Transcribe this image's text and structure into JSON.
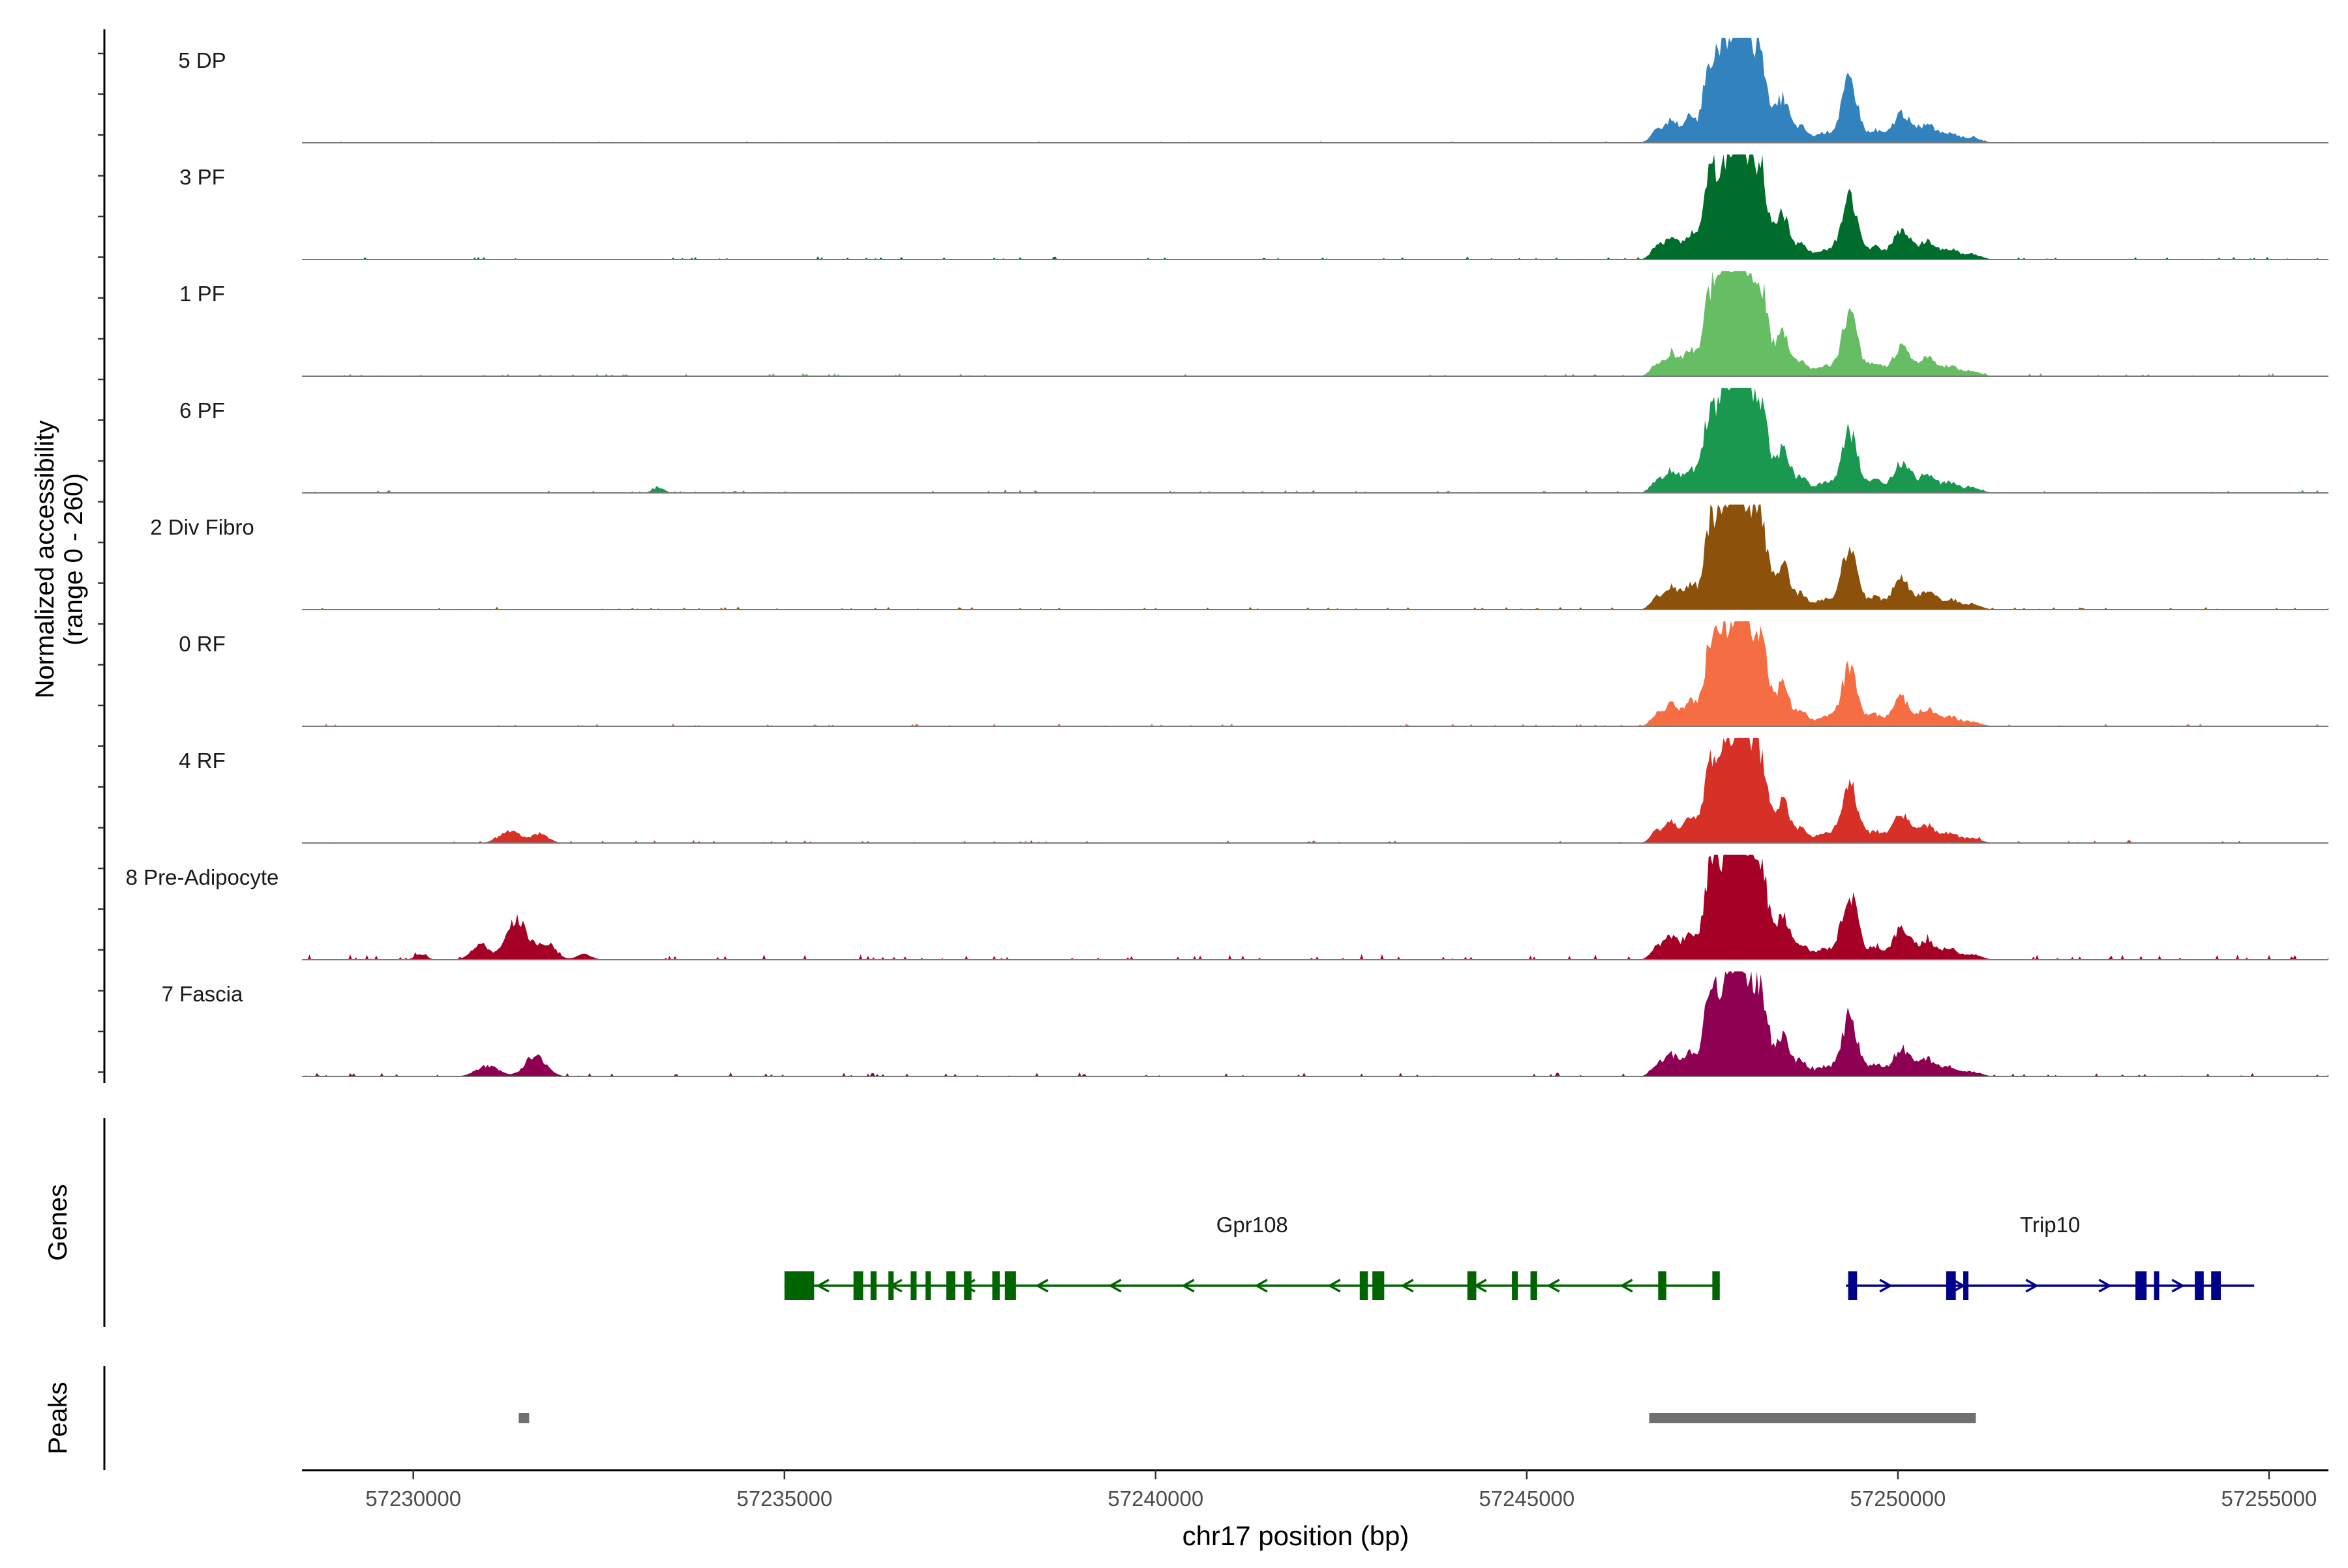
{
  "chart_data": {
    "type": "area",
    "title": "",
    "xlabel": "chr17 position (bp)",
    "ylabel": "Normalized accessibility",
    "ylabel_sub": "(range 0 - 260)",
    "xlim": [
      57228500,
      57255800
    ],
    "ylim": [
      0,
      260
    ],
    "x_ticks": [
      57230000,
      57235000,
      57240000,
      57245000,
      57250000,
      57255000
    ],
    "x_tick_labels": [
      "57230000",
      "57235000",
      "57240000",
      "57245000",
      "57250000",
      "57255000"
    ],
    "track_labels": {
      "genes": "Genes",
      "peaks": "Peaks"
    },
    "profile_peaks": [
      {
        "pos": 57246750,
        "h": 0.12,
        "w": 80
      },
      {
        "pos": 57246950,
        "h": 0.22,
        "w": 90
      },
      {
        "pos": 57247200,
        "h": 0.25,
        "w": 90
      },
      {
        "pos": 57247450,
        "h": 0.62,
        "w": 80
      },
      {
        "pos": 57247650,
        "h": 0.88,
        "w": 120
      },
      {
        "pos": 57247850,
        "h": 0.95,
        "w": 100
      },
      {
        "pos": 57248050,
        "h": 0.85,
        "w": 110
      },
      {
        "pos": 57248200,
        "h": 0.45,
        "w": 80
      },
      {
        "pos": 57248450,
        "h": 0.45,
        "w": 90
      },
      {
        "pos": 57248700,
        "h": 0.15,
        "w": 80
      },
      {
        "pos": 57249000,
        "h": 0.1,
        "w": 120
      },
      {
        "pos": 57249350,
        "h": 0.62,
        "w": 110
      },
      {
        "pos": 57249700,
        "h": 0.12,
        "w": 90
      },
      {
        "pos": 57250050,
        "h": 0.3,
        "w": 120
      },
      {
        "pos": 57250400,
        "h": 0.18,
        "w": 110
      },
      {
        "pos": 57250700,
        "h": 0.1,
        "w": 110
      },
      {
        "pos": 57251000,
        "h": 0.05,
        "w": 120
      }
    ],
    "series": [
      {
        "name": "5 DP",
        "color": "#3182bd",
        "values": {
          "scale": 0.95,
          "bg": 0.01,
          "extra": []
        }
      },
      {
        "name": "3 PF",
        "color": "#006d2c",
        "values": {
          "scale": 0.95,
          "bg": 0.02,
          "extra": []
        }
      },
      {
        "name": "1 PF",
        "color": "#66bd63",
        "values": {
          "scale": 0.95,
          "bg": 0.02,
          "extra": []
        }
      },
      {
        "name": "6 PF",
        "color": "#1a9850",
        "values": {
          "scale": 0.95,
          "bg": 0.02,
          "extra": [
            {
              "pos": 57233300,
              "h": 0.05,
              "w": 80
            }
          ]
        }
      },
      {
        "name": "2 Div Fibro",
        "color": "#8c510a",
        "values": {
          "scale": 0.95,
          "bg": 0.02,
          "extra": []
        }
      },
      {
        "name": "0 RF",
        "color": "#f46d43",
        "values": {
          "scale": 0.9,
          "bg": 0.02,
          "extra": []
        }
      },
      {
        "name": "4 RF",
        "color": "#d73027",
        "values": {
          "scale": 0.9,
          "bg": 0.02,
          "extra": [
            {
              "pos": 57231300,
              "h": 0.12,
              "w": 140
            },
            {
              "pos": 57231700,
              "h": 0.08,
              "w": 120
            }
          ]
        }
      },
      {
        "name": "8 Pre-Adipocyte",
        "color": "#a50026",
        "values": {
          "scale": 1.0,
          "bg": 0.04,
          "extra": [
            {
              "pos": 57230100,
              "h": 0.05,
              "w": 80
            },
            {
              "pos": 57230900,
              "h": 0.15,
              "w": 120
            },
            {
              "pos": 57231400,
              "h": 0.38,
              "w": 140
            },
            {
              "pos": 57231800,
              "h": 0.15,
              "w": 120
            },
            {
              "pos": 57232300,
              "h": 0.05,
              "w": 100
            }
          ]
        }
      },
      {
        "name": "7 Fascia",
        "color": "#8e0152",
        "values": {
          "scale": 0.9,
          "bg": 0.03,
          "extra": [
            {
              "pos": 57231000,
              "h": 0.1,
              "w": 150
            },
            {
              "pos": 57231650,
              "h": 0.2,
              "w": 140
            }
          ]
        }
      }
    ],
    "genes": [
      {
        "name": "Gpr108",
        "color": "#006400",
        "strand": "-",
        "start": 57235000,
        "end": 57247600,
        "exons": [
          [
            57235000,
            57235400
          ],
          [
            57235930,
            57236060
          ],
          [
            57236160,
            57236240
          ],
          [
            57236400,
            57236470
          ],
          [
            57236700,
            57236780
          ],
          [
            57236900,
            57236960
          ],
          [
            57237180,
            57237300
          ],
          [
            57237420,
            57237520
          ],
          [
            57237800,
            57237900
          ],
          [
            57237970,
            57238120
          ],
          [
            57242750,
            57242860
          ],
          [
            57242920,
            57243080
          ],
          [
            57244200,
            57244320
          ],
          [
            57244800,
            57244880
          ],
          [
            57245050,
            57245140
          ],
          [
            57246770,
            57246880
          ],
          [
            57247500,
            57247600
          ]
        ]
      },
      {
        "name": "Trip10",
        "color": "#00008b",
        "strand": "+",
        "start": 57249300,
        "end": 57254800,
        "exons": [
          [
            57249330,
            57249450
          ],
          [
            57250650,
            57250780
          ],
          [
            57250880,
            57250950
          ],
          [
            57253200,
            57253350
          ],
          [
            57253450,
            57253520
          ],
          [
            57254000,
            57254120
          ],
          [
            57254220,
            57254350
          ]
        ]
      }
    ],
    "peaks": [
      {
        "start": 57231420,
        "end": 57231560
      },
      {
        "start": 57246650,
        "end": 57251050
      }
    ]
  }
}
